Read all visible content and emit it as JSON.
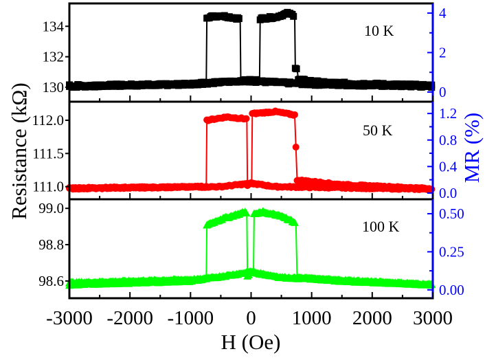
{
  "chart_data": {
    "type": "scatter",
    "xlabel": "H (Oe)",
    "ylabel": "Resistance (kΩ)",
    "y2label": "MR (%)",
    "xlim": [
      -3000,
      3000
    ],
    "xticks": [
      -3000,
      -2000,
      -1000,
      0,
      1000,
      2000,
      3000
    ],
    "xtick_labels": [
      "-3000",
      "-2000",
      "-1000",
      "0",
      "1000",
      "2000",
      "3000"
    ],
    "colors": {
      "axis": "#000000",
      "right_axis": "#0000ff"
    },
    "panels": [
      {
        "label": "10 K",
        "color": "#000000",
        "marker": "square",
        "ylim": [
          129.05,
          135.5
        ],
        "yticks": [
          130,
          132,
          134
        ],
        "ytick_labels": [
          "130",
          "132",
          "134"
        ],
        "y2lim": [
          -0.49,
          4.49
        ],
        "y2ticks": [
          0,
          2,
          4
        ],
        "y2tick_labels": [
          "0",
          "2",
          "4"
        ],
        "noise": 0.15,
        "branches": [
          [
            [
              -3000,
              130.05
            ],
            [
              -1000,
              130.2
            ],
            [
              -740,
              130.3
            ],
            [
              -730,
              134.6
            ],
            [
              -500,
              134.7
            ],
            [
              -180,
              134.5
            ],
            [
              -170,
              130.4
            ],
            [
              0,
              130.4
            ],
            [
              500,
              130.3
            ],
            [
              1000,
              130.2
            ],
            [
              3000,
              130.05
            ]
          ],
          [
            [
              -3000,
              130.1
            ],
            [
              -1000,
              130.2
            ],
            [
              0,
              130.45
            ],
            [
              140,
              130.45
            ],
            [
              150,
              134.5
            ],
            [
              400,
              134.6
            ],
            [
              600,
              134.85
            ],
            [
              720,
              134.7
            ],
            [
              730,
              131.3
            ],
            [
              760,
              131.2
            ],
            [
              780,
              130.5
            ],
            [
              1200,
              130.3
            ],
            [
              3000,
              130.1
            ]
          ]
        ]
      },
      {
        "label": "50 K",
        "color": "#ff0000",
        "marker": "circle",
        "ylim": [
          110.81,
          112.28
        ],
        "yticks": [
          111.0,
          111.5,
          112.0
        ],
        "ytick_labels": [
          "111.0",
          "111.5",
          "112.0"
        ],
        "y2lim": [
          -0.094,
          1.378
        ],
        "y2ticks": [
          0.0,
          0.4,
          0.8,
          1.2
        ],
        "y2tick_labels": [
          "0.0",
          "0.4",
          "0.8",
          "1.2"
        ],
        "noise": 0.02,
        "branches": [
          [
            [
              -3000,
              110.98
            ],
            [
              -740,
              111.0
            ],
            [
              -730,
              112.0
            ],
            [
              -400,
              112.05
            ],
            [
              -70,
              112.02
            ],
            [
              -60,
              111.02
            ],
            [
              0,
              111.05
            ],
            [
              400,
              111.0
            ],
            [
              3000,
              110.96
            ]
          ],
          [
            [
              -3000,
              110.97
            ],
            [
              -500,
              111.0
            ],
            [
              0,
              111.05
            ],
            [
              10,
              111.06
            ],
            [
              20,
              112.1
            ],
            [
              400,
              112.13
            ],
            [
              720,
              112.08
            ],
            [
              760,
              111.1
            ],
            [
              1500,
              111.03
            ],
            [
              3000,
              110.97
            ]
          ]
        ]
      },
      {
        "label": "100 K",
        "color": "#00ff00",
        "marker": "triangle",
        "ylim": [
          98.505,
          99.05
        ],
        "yticks": [
          98.6,
          98.8,
          99.0
        ],
        "ytick_labels": [
          "98.6",
          "98.8",
          "99.0"
        ],
        "y2lim": [
          -0.055,
          0.595
        ],
        "y2ticks": [
          0.0,
          0.25,
          0.5
        ],
        "y2tick_labels": [
          "0.00",
          "0.25",
          "0.50"
        ],
        "noise": 0.008,
        "branches": [
          [
            [
              -3000,
              98.59
            ],
            [
              -740,
              98.61
            ],
            [
              -730,
              98.91
            ],
            [
              -500,
              98.94
            ],
            [
              -100,
              98.98
            ],
            [
              -70,
              98.97
            ],
            [
              -60,
              98.63
            ],
            [
              0,
              98.65
            ],
            [
              500,
              98.62
            ],
            [
              3000,
              98.58
            ]
          ],
          [
            [
              -3000,
              98.58
            ],
            [
              -1000,
              98.6
            ],
            [
              0,
              98.65
            ],
            [
              40,
              98.65
            ],
            [
              50,
              98.97
            ],
            [
              200,
              98.98
            ],
            [
              500,
              98.96
            ],
            [
              740,
              98.92
            ],
            [
              760,
              98.62
            ],
            [
              1500,
              98.6
            ],
            [
              3000,
              98.58
            ]
          ]
        ]
      }
    ]
  }
}
